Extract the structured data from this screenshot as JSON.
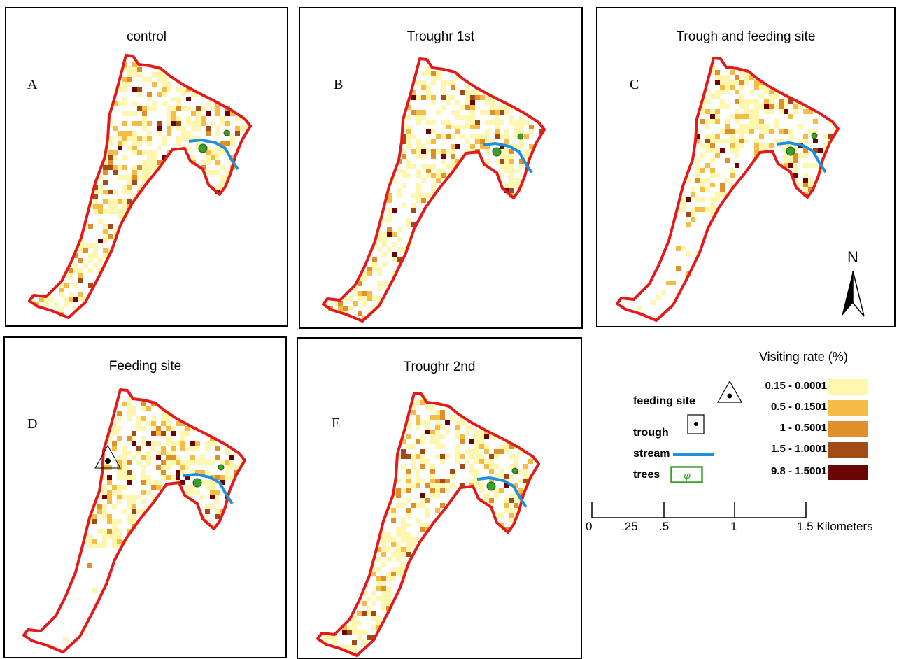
{
  "panels": [
    {
      "title": "control",
      "letter": "A",
      "trough": false,
      "feeding": false
    },
    {
      "title": "Troughr 1st",
      "letter": "B",
      "trough": true,
      "feeding": false
    },
    {
      "title": "Trough and feeding site",
      "letter": "C",
      "trough": true,
      "feeding": true
    },
    {
      "title": "Feeding site",
      "letter": "D",
      "trough": false,
      "feeding": true
    },
    {
      "title": "Troughr 2nd",
      "letter": "E",
      "trough": true,
      "feeding": false
    }
  ],
  "legend": {
    "title": "Visiting rate (%)",
    "symbols": {
      "feeding_site": "feeding site",
      "trough": "trough",
      "stream": "stream",
      "trees": "trees"
    },
    "classes": [
      {
        "label": "0.15 - 0.0001",
        "color": "#fff7b0"
      },
      {
        "label": "0.5 - 0.1501",
        "color": "#f5bd45"
      },
      {
        "label": "1 - 0.5001",
        "color": "#e0902a"
      },
      {
        "label": "1.5 - 1.0001",
        "color": "#a24b16"
      },
      {
        "label": "9.8 - 1.5001",
        "color": "#6b0505"
      }
    ],
    "stream_color": "#1e90e0",
    "boundary_color": "#e41a1a",
    "tree_color": "#3aa02a"
  },
  "scale_bar": {
    "ticks": [
      "0",
      ".25",
      ".5",
      "1",
      "1.5 Kilometers"
    ]
  },
  "north_arrow": {
    "label": "N"
  }
}
